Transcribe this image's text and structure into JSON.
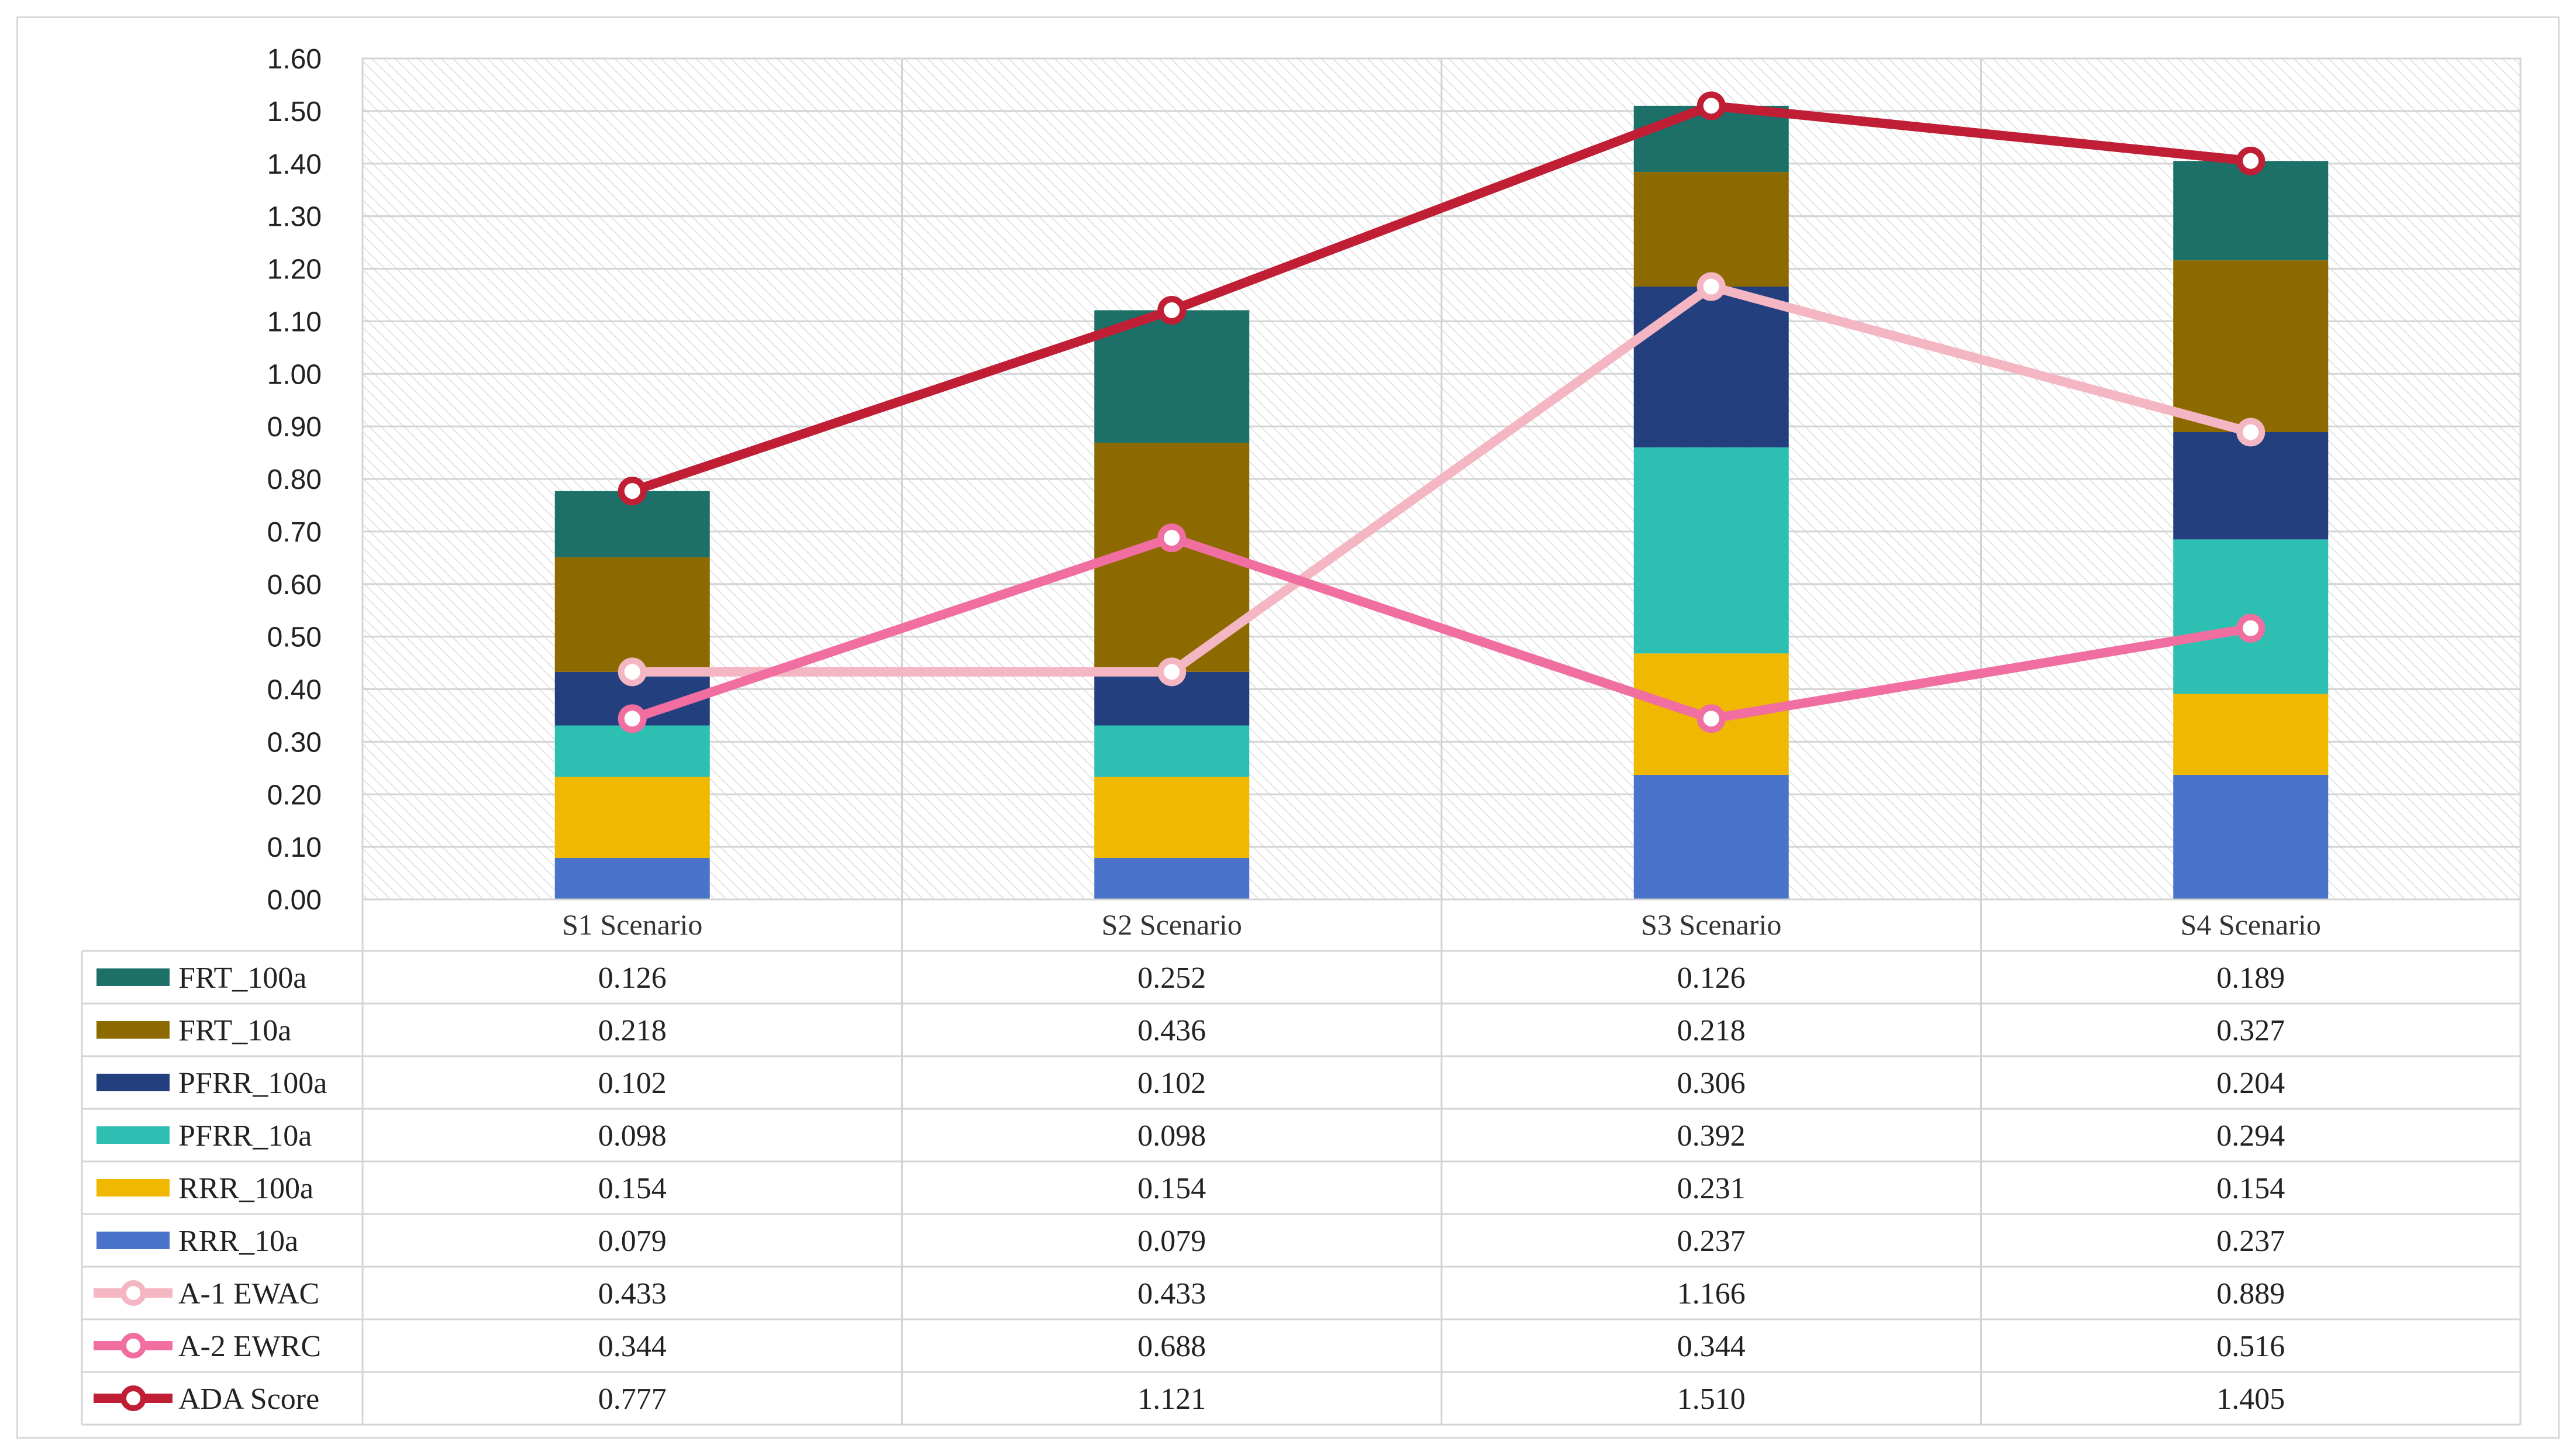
{
  "chart_data": {
    "type": "bar",
    "stacked": true,
    "categories": [
      "S1 Scenario",
      "S2 Scenario",
      "S3 Scenario",
      "S4 Scenario"
    ],
    "ylim": [
      0,
      1.6
    ],
    "ytick_step": 0.1,
    "ytick_labels": [
      "0.00",
      "0.10",
      "0.20",
      "0.30",
      "0.40",
      "0.50",
      "0.60",
      "0.70",
      "0.80",
      "0.90",
      "1.00",
      "1.10",
      "1.20",
      "1.30",
      "1.40",
      "1.50",
      "1.60"
    ],
    "grid": true,
    "legend": "data-table-below",
    "bar_series": [
      {
        "name": "RRR_10a",
        "color": "#4a74c9",
        "values": [
          0.079,
          0.079,
          0.237,
          0.237
        ],
        "labels": [
          "0.079",
          "0.079",
          "0.237",
          "0.237"
        ]
      },
      {
        "name": "RRR_100a",
        "color": "#f0b800",
        "values": [
          0.154,
          0.154,
          0.231,
          0.154
        ],
        "labels": [
          "0.154",
          "0.154",
          "0.231",
          "0.154"
        ]
      },
      {
        "name": "PFRR_10a",
        "color": "#2ebfb3",
        "values": [
          0.098,
          0.098,
          0.392,
          0.294
        ],
        "labels": [
          "0.098",
          "0.098",
          "0.392",
          "0.294"
        ]
      },
      {
        "name": "PFRR_100a",
        "color": "#233f7e",
        "values": [
          0.102,
          0.102,
          0.306,
          0.204
        ],
        "labels": [
          "0.102",
          "0.102",
          "0.306",
          "0.204"
        ]
      },
      {
        "name": "FRT_10a",
        "color": "#8c6a00",
        "values": [
          0.218,
          0.436,
          0.218,
          0.327
        ],
        "labels": [
          "0.218",
          "0.436",
          "0.218",
          "0.327"
        ]
      },
      {
        "name": "FRT_100a",
        "color": "#1c7068",
        "values": [
          0.126,
          0.252,
          0.126,
          0.189
        ],
        "labels": [
          "0.126",
          "0.252",
          "0.126",
          "0.189"
        ]
      }
    ],
    "line_series": [
      {
        "name": "A-1 EWAC",
        "color": "#f4b6c2",
        "values": [
          0.433,
          0.433,
          1.166,
          0.889
        ],
        "labels": [
          "0.433",
          "0.433",
          "1.166",
          "0.889"
        ]
      },
      {
        "name": "A-2 EWRC",
        "color": "#f06ea0",
        "values": [
          0.344,
          0.688,
          0.344,
          0.516
        ],
        "labels": [
          "0.344",
          "0.688",
          "0.344",
          "0.516"
        ]
      },
      {
        "name": "ADA Score",
        "color": "#c01e35",
        "values": [
          0.777,
          1.121,
          1.51,
          1.405
        ],
        "labels": [
          "0.777",
          "1.121",
          "1.510",
          "1.405"
        ]
      }
    ],
    "table_row_order": [
      "FRT_100a",
      "FRT_10a",
      "PFRR_100a",
      "PFRR_10a",
      "RRR_100a",
      "RRR_10a",
      "A-1 EWAC",
      "A-2 EWRC",
      "ADA Score"
    ]
  }
}
